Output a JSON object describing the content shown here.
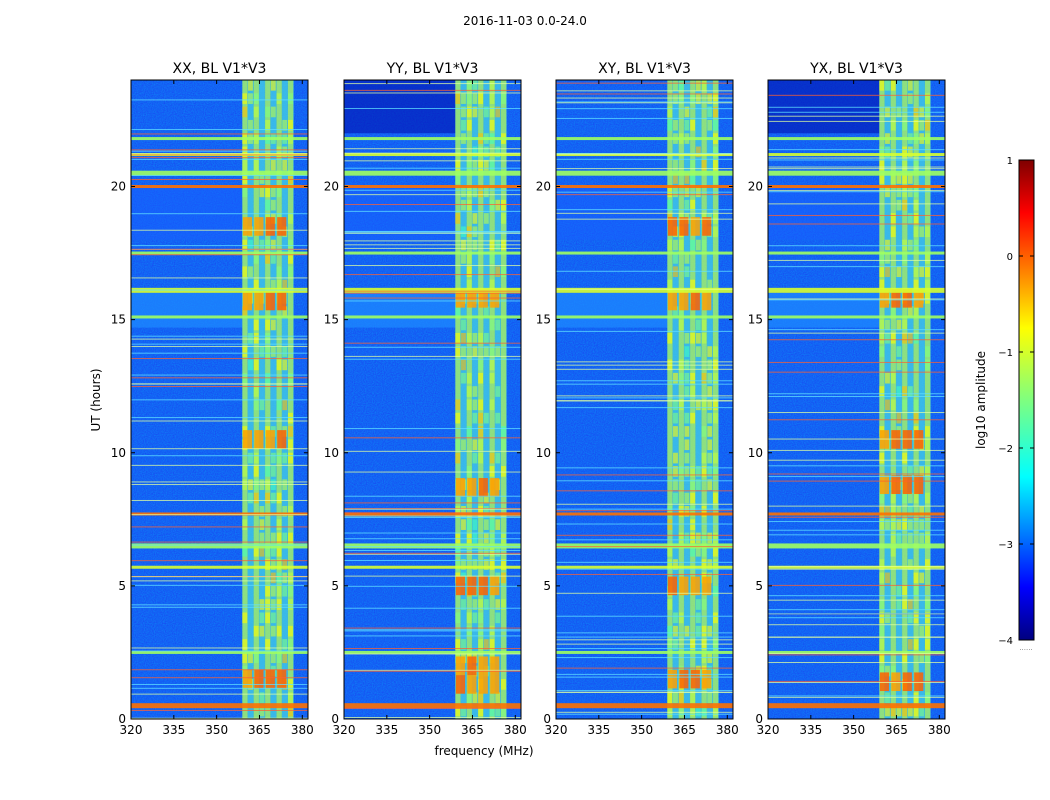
{
  "suptitle": "2016-11-03 0.0-24.0",
  "chart_data": {
    "type": "heatmap",
    "shared": {
      "xlabel": "frequency (MHz)",
      "ylabel": "UT (hours)",
      "xlim": [
        320,
        382
      ],
      "ylim": [
        0,
        24
      ],
      "xticks": [
        320,
        335,
        350,
        365,
        380
      ],
      "yticks": [
        0,
        5,
        10,
        15,
        20
      ],
      "colormap": "jet"
    },
    "panels": [
      {
        "title": "XX, BL V1*V3",
        "rfi_band_mhz": [
          359,
          377
        ],
        "bright_patches_ut": [
          1.5,
          10.5,
          15.7,
          18.5
        ]
      },
      {
        "title": "YY, BL V1*V3",
        "rfi_band_mhz": [
          359,
          377
        ],
        "bright_patches_ut": [
          1.3,
          2.0,
          5.0,
          8.7,
          15.8
        ]
      },
      {
        "title": "XY, BL V1*V3",
        "rfi_band_mhz": [
          359,
          377
        ],
        "bright_patches_ut": [
          1.5,
          5.0,
          15.7,
          18.5
        ]
      },
      {
        "title": "YX, BL V1*V3",
        "rfi_band_mhz": [
          359,
          377
        ],
        "bright_patches_ut": [
          1.4,
          8.8,
          10.5,
          15.8
        ]
      }
    ],
    "horizontal_bands_ut": [
      0.5,
      2.5,
      5.7,
      6.5,
      7.7,
      15.1,
      16.1,
      17.5,
      20.0,
      20.5,
      21.2,
      21.8
    ],
    "colorbar": {
      "label": "log10 amplitude",
      "range": [
        -4,
        1
      ],
      "ticks": [
        -4,
        -3,
        -2,
        -1,
        0,
        1
      ],
      "tick_labels": [
        "−4",
        "−3",
        "−2",
        "−1",
        "0",
        "1"
      ],
      "note": "......"
    }
  }
}
